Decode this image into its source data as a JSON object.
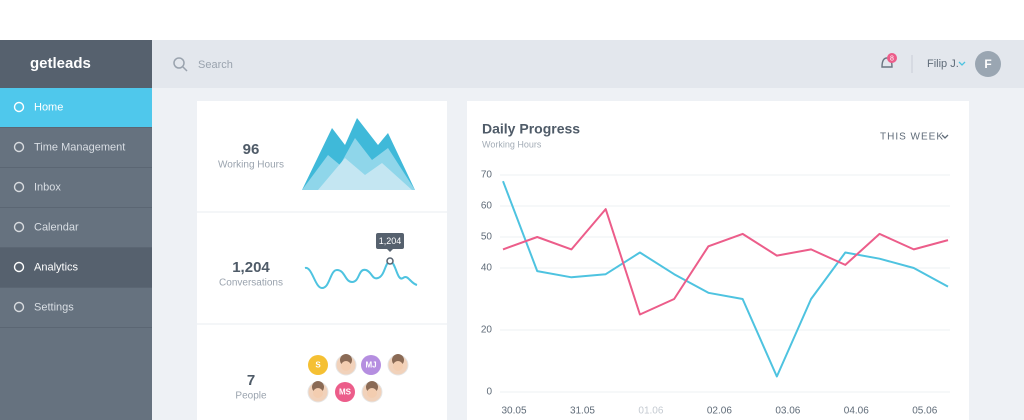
{
  "sidebar": {
    "logo": "getleads",
    "menu": [
      "Home",
      "Time Management",
      "Inbox",
      "Calendar",
      "Analytics",
      "Settings"
    ]
  },
  "topbar": {
    "search_placeholder": "Search",
    "notification_count": "8",
    "user": "Filip J.",
    "avatar": "F"
  },
  "stats": [
    {
      "value": "96",
      "label": "Working Hours"
    },
    {
      "value": "1,204",
      "label": "Conversations",
      "tooltip": "1,204"
    },
    {
      "value": "7",
      "label": "People",
      "avatars": [
        "S",
        "MJ",
        "MS"
      ]
    }
  ],
  "chart_data": {
    "type": "line",
    "title": "Daily Progress",
    "subtitle": "Working Hours",
    "filter": "THIS WEEK",
    "categories": [
      "30.05",
      null,
      "31.05",
      null,
      "01.06",
      null,
      "02.06",
      null,
      "03.06",
      null,
      "04.06",
      null,
      "05.06",
      null
    ],
    "series": [
      {
        "color": "#4ec3e0",
        "values": [
          68,
          39,
          37,
          38,
          45,
          38,
          32,
          30,
          5,
          30,
          45,
          43,
          40,
          34
        ]
      },
      {
        "color": "#ec5d8a",
        "values": [
          46,
          50,
          46,
          59,
          25,
          30,
          47,
          51,
          44,
          46,
          41,
          51,
          46,
          49
        ]
      }
    ],
    "ylim": [
      0,
      70
    ],
    "yticks": [
      70,
      60,
      50,
      40,
      20,
      0
    ],
    "grid": true
  }
}
